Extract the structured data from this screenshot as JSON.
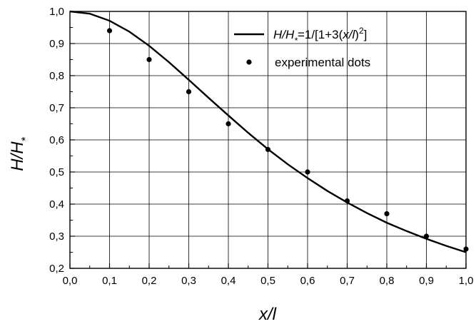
{
  "chart_data": {
    "type": "line",
    "xlabel": "x/l",
    "ylabel": "H/H*",
    "xlim": [
      0.0,
      1.0
    ],
    "ylim": [
      0.2,
      1.0
    ],
    "x_ticks": [
      0.0,
      0.1,
      0.2,
      0.3,
      0.4,
      0.5,
      0.6,
      0.7,
      0.8,
      0.9,
      1.0
    ],
    "y_ticks": [
      0.2,
      0.3,
      0.4,
      0.5,
      0.6,
      0.7,
      0.8,
      0.9,
      1.0
    ],
    "x_tick_labels": [
      "0,0",
      "0,1",
      "0,2",
      "0,3",
      "0,4",
      "0,5",
      "0,6",
      "0,7",
      "0,8",
      "0,9",
      "1,0"
    ],
    "y_tick_labels": [
      "0,2",
      "0,3",
      "0,4",
      "0,5",
      "0,6",
      "0,7",
      "0,8",
      "0,9",
      "1,0"
    ],
    "grid": true,
    "legend_position": "top-right",
    "series": [
      {
        "name": "H/H*=1/[1+3(x/l)^2]",
        "kind": "line",
        "color": "#000000",
        "x": [
          0.0,
          0.05,
          0.1,
          0.15,
          0.2,
          0.25,
          0.3,
          0.35,
          0.4,
          0.45,
          0.5,
          0.55,
          0.6,
          0.65,
          0.7,
          0.75,
          0.8,
          0.85,
          0.9,
          0.95,
          1.0
        ],
        "y": [
          1.0,
          0.993,
          0.971,
          0.937,
          0.893,
          0.842,
          0.787,
          0.731,
          0.676,
          0.622,
          0.571,
          0.524,
          0.481,
          0.441,
          0.405,
          0.372,
          0.342,
          0.316,
          0.292,
          0.27,
          0.25
        ]
      },
      {
        "name": "experimental dots",
        "kind": "scatter",
        "color": "#000000",
        "x": [
          0.1,
          0.2,
          0.3,
          0.4,
          0.5,
          0.6,
          0.7,
          0.8,
          0.9,
          1.0
        ],
        "y": [
          0.94,
          0.85,
          0.75,
          0.65,
          0.57,
          0.5,
          0.41,
          0.37,
          0.3,
          0.26
        ]
      }
    ]
  }
}
